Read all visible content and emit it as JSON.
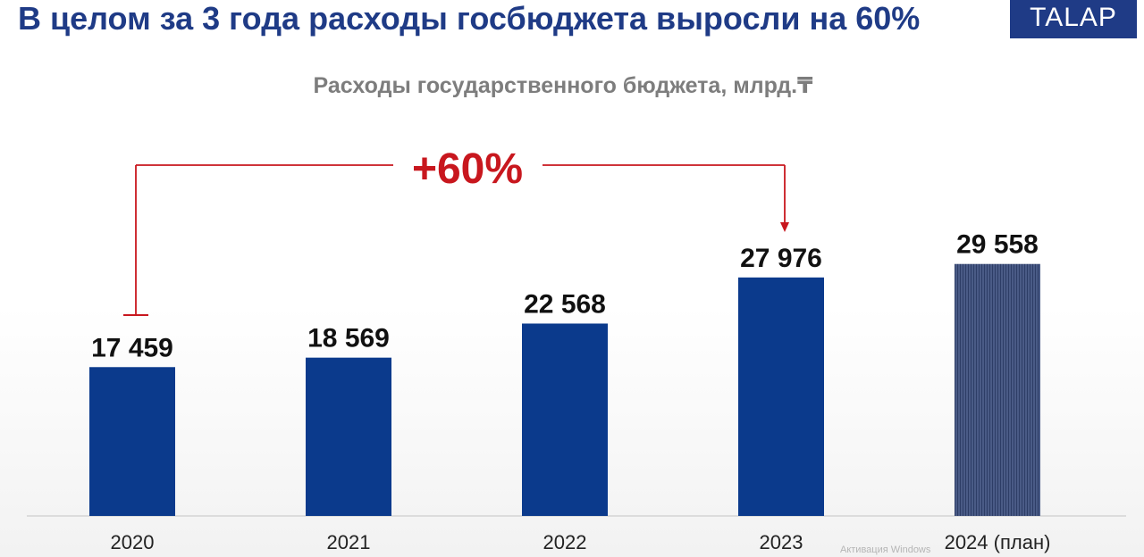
{
  "header": {
    "title": "В целом за 3 года расходы госбюджета выросли на 60%",
    "logo_text": "TALAP"
  },
  "chart_data": {
    "type": "bar",
    "title": "Расходы государственного бюджета, млрд.₸",
    "categories": [
      "2020",
      "2021",
      "2022",
      "2023",
      "2024 (план)"
    ],
    "values": [
      17459,
      18569,
      22568,
      27976,
      29558
    ],
    "value_labels": [
      "17 459",
      "18 569",
      "22 568",
      "27 976",
      "29 558"
    ],
    "planned": [
      false,
      false,
      false,
      false,
      true
    ],
    "ylim": [
      0,
      38000
    ],
    "grid": false,
    "legend": "none",
    "annotation": {
      "text": "+60%",
      "from_category": "2020",
      "to_category": "2023"
    },
    "colors": {
      "bar": "#0b3a8c",
      "planned_bar": "#3d4f7a",
      "annotation": "#c8171e",
      "axis_text": "#222222"
    }
  },
  "watermark": "Активация Windows"
}
